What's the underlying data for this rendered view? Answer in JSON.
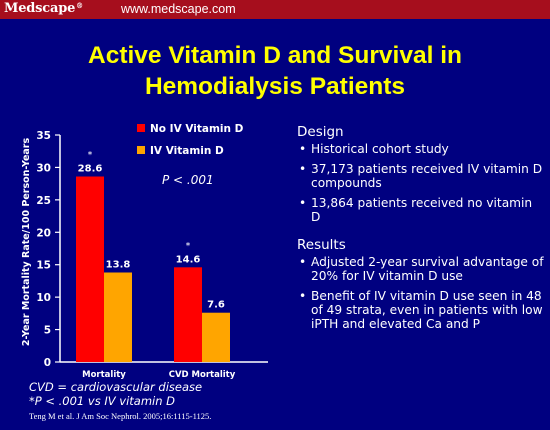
{
  "header": {
    "brand": "Medscape",
    "brand_mark": "®",
    "url": "www.medscape.com"
  },
  "slide": {
    "title_line1": "Active Vitamin D and Survival in",
    "title_line2": "Hemodialysis Patients",
    "design": {
      "heading": "Design",
      "bullets": [
        "Historical cohort study",
        "37,173 patients received IV vitamin D compounds",
        "13,864 patients received no vitamin D"
      ]
    },
    "results": {
      "heading": "Results",
      "bullets": [
        "Adjusted 2-year survival advantage of 20% for IV vitamin D use",
        "Benefit of IV vitamin D use seen in 48 of 49 strata, even in patients with low iPTH and elevated Ca and P"
      ]
    },
    "footnote_1": "CVD = cardiovascular disease",
    "footnote_2": "*P < .001 vs IV vitamin D",
    "citation": "Teng M et al. J Am Soc Nephrol. 2005;16:1115-1125."
  },
  "chart_data": {
    "type": "bar",
    "categories": [
      "Mortality",
      "CVD Mortality"
    ],
    "series": [
      {
        "name": "No IV Vitamin D",
        "values": [
          28.6,
          14.6
        ],
        "color": "#ff0000",
        "marks": [
          "*",
          "*"
        ]
      },
      {
        "name": "IV Vitamin D",
        "values": [
          13.8,
          7.6
        ],
        "color": "#ffa500"
      }
    ],
    "ylabel": "2-Year Mortality Rate/100 Person-Years",
    "ylim": [
      0,
      35
    ],
    "yticks": [
      0,
      5,
      10,
      15,
      20,
      25,
      30,
      35
    ],
    "annotation": "P < .001",
    "grid": false,
    "legend_position": "top-right"
  }
}
